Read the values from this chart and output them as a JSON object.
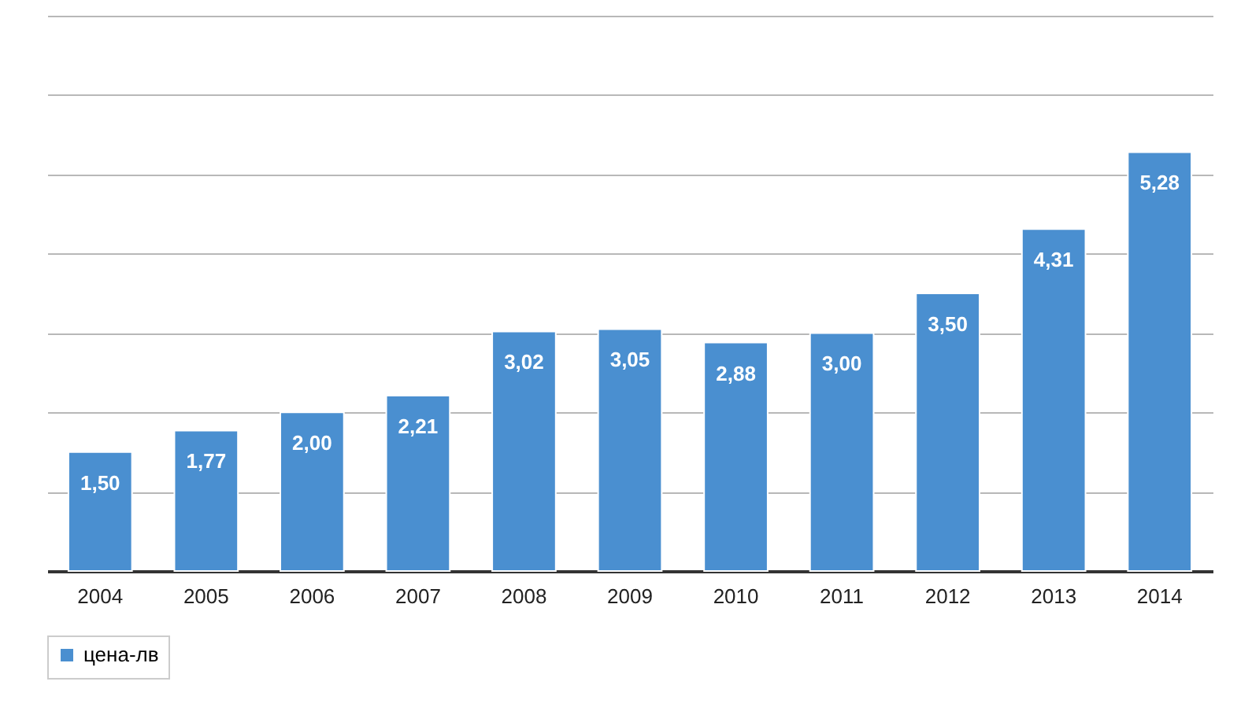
{
  "chart_data": {
    "type": "bar",
    "categories": [
      "2004",
      "2005",
      "2006",
      "2007",
      "2008",
      "2009",
      "2010",
      "2011",
      "2012",
      "2013",
      "2014"
    ],
    "series": [
      {
        "name": "цена-лв",
        "color": "#4a8fd0",
        "values": [
          1.5,
          1.77,
          2.0,
          2.21,
          3.02,
          3.05,
          2.88,
          3.0,
          3.5,
          4.31,
          5.28
        ],
        "value_labels": [
          "1,50",
          "1,77",
          "2,00",
          "2,21",
          "3,02",
          "3,05",
          "2,88",
          "3,00",
          "3,50",
          "4,31",
          "5,28"
        ]
      }
    ],
    "ylim": [
      0,
      7
    ],
    "yticks": [
      {
        "value": 0,
        "label": null
      },
      {
        "value": 1,
        "label": null
      },
      {
        "value": 2,
        "label": null
      },
      {
        "value": 3,
        "label": null
      },
      {
        "value": 4,
        "label": null
      },
      {
        "value": 5,
        "label": null
      },
      {
        "value": 6,
        "label": null
      },
      {
        "value": 7,
        "label": null
      }
    ],
    "grid": "y",
    "legend": "bottom",
    "tick_labels": "x"
  }
}
